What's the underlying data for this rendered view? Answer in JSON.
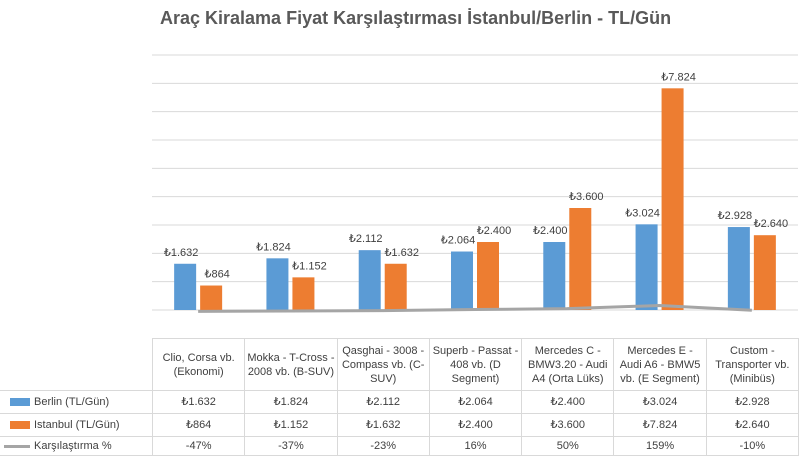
{
  "chart_data": {
    "type": "bar",
    "title": "Araç Kiralama Fiyat Karşılaştırması İstanbul/Berlin - TL/Gün",
    "categories": [
      "Clio, Corsa vb. (Ekonomi)",
      "Mokka - T-Cross - 2008 vb. (B-SUV)",
      "Qasghai - 3008 - Compass vb. (C-SUV)",
      "Superb - Passat - 408 vb. (D Segment)",
      "Mercedes C - BMW3.20 - Audi A4 (Orta Lüks)",
      "Mercedes E - Audi A6 - BMW5 vb. (E Segment)",
      "Custom - Transporter vb. (Minibüs)"
    ],
    "series": [
      {
        "name": "Berlin (TL/Gün)",
        "type": "bar",
        "color": "#5b9bd5",
        "values": [
          1632,
          1824,
          2112,
          2064,
          2400,
          3024,
          2928
        ],
        "value_labels": [
          "₺1.632",
          "₺1.824",
          "₺2.112",
          "₺2.064",
          "₺2.400",
          "₺3.024",
          "₺2.928"
        ]
      },
      {
        "name": "Istanbul (TL/Gün)",
        "type": "bar",
        "color": "#ed7d31",
        "values": [
          864,
          1152,
          1632,
          2400,
          3600,
          7824,
          2640
        ],
        "value_labels": [
          "₺864",
          "₺1.152",
          "₺1.632",
          "₺2.400",
          "₺3.600",
          "₺7.824",
          "₺2.640"
        ]
      },
      {
        "name": "Karşılaştırma %",
        "type": "line",
        "color": "#a5a5a5",
        "values": [
          -47,
          -37,
          -23,
          16,
          50,
          159,
          -10
        ],
        "value_labels": [
          "-47%",
          "-37%",
          "-23%",
          "16%",
          "50%",
          "159%",
          "-10%"
        ]
      }
    ],
    "ylim": [
      0,
      9000
    ],
    "yticks": [
      0,
      1000,
      2000,
      3000,
      4000,
      5000,
      6000,
      7000,
      8000,
      9000
    ],
    "grid": true
  }
}
